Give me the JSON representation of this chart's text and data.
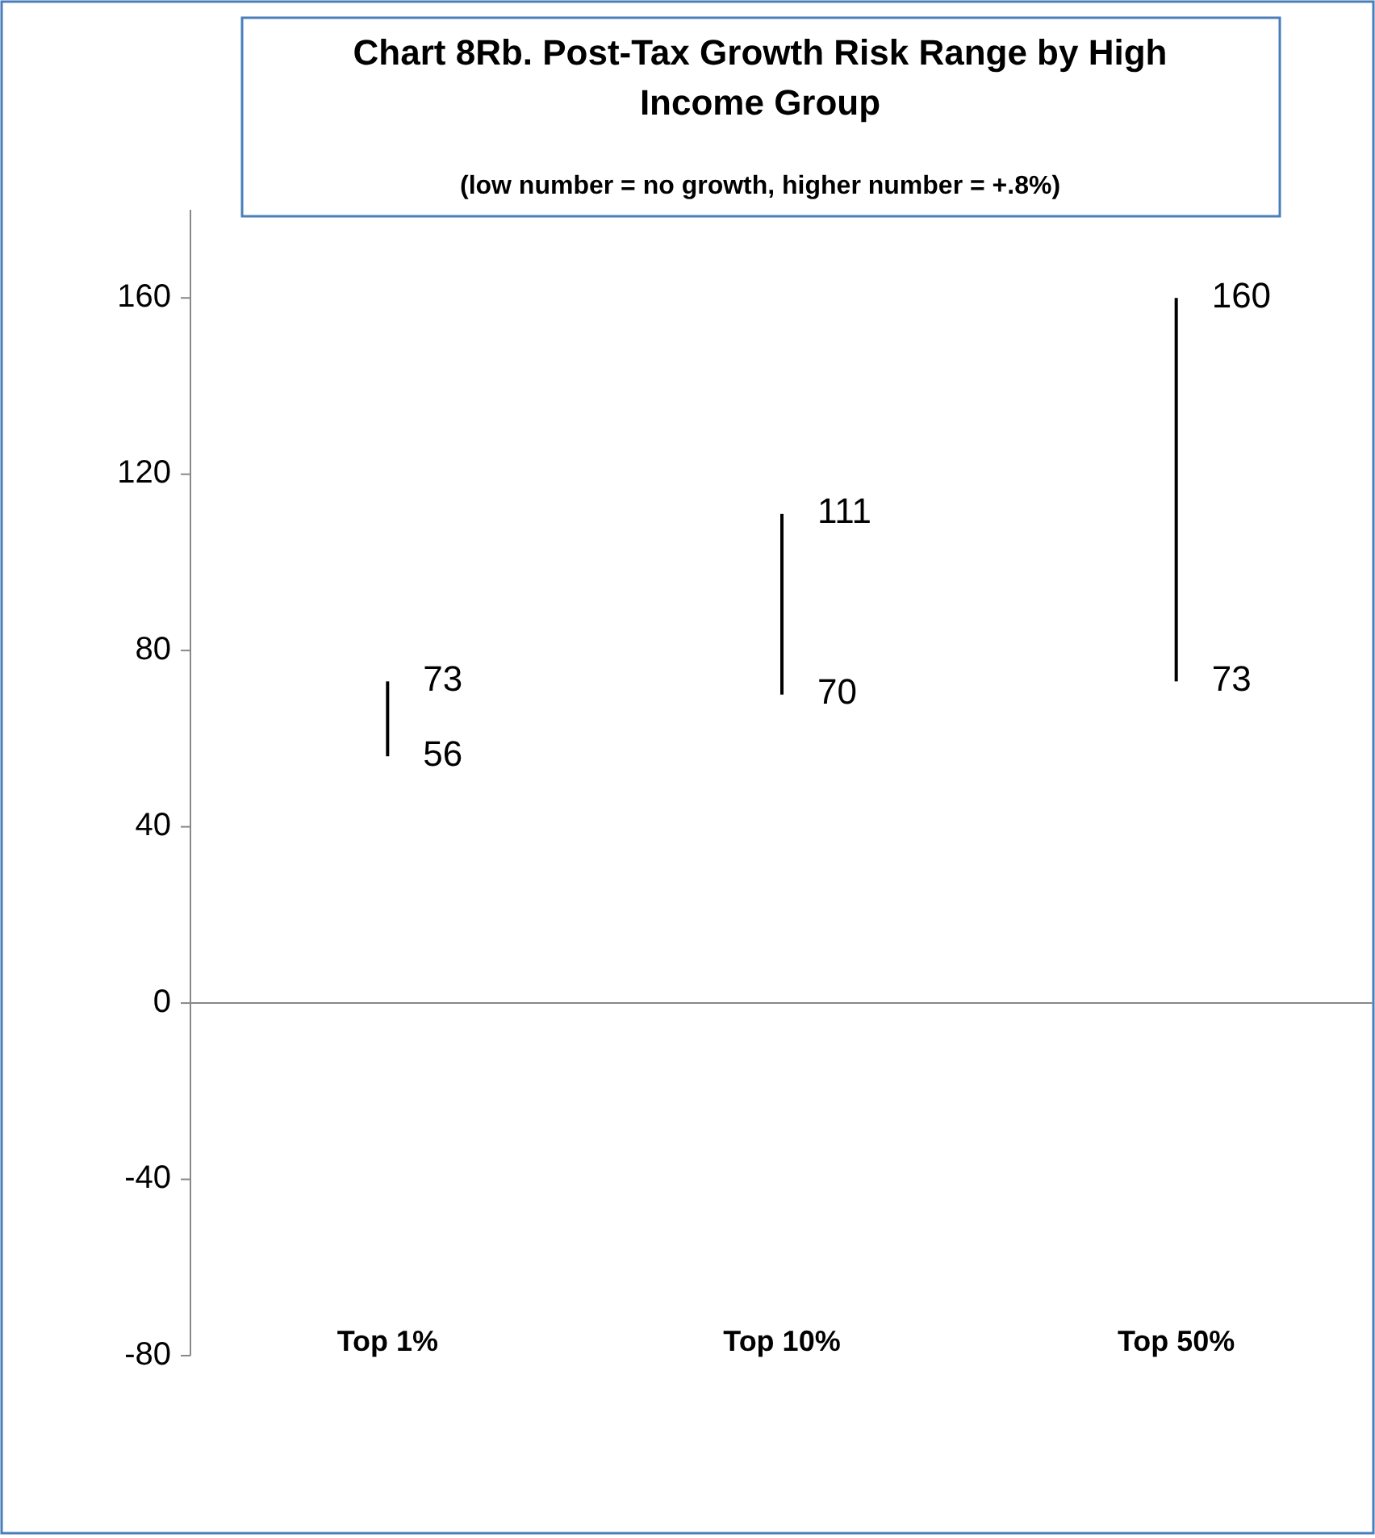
{
  "chart_data": {
    "type": "bar",
    "title": "Chart 8Rb.  Post-Tax Growth Risk Range by High Income Group",
    "subtitle": "(low number = no growth, higher number = +.8%)",
    "categories": [
      "Top 1%",
      "Top 10%",
      "Top 50%"
    ],
    "base": [
      56,
      70,
      73
    ],
    "values": [
      17,
      41,
      87
    ],
    "color": "#000000",
    "ylim": [
      -80,
      180
    ],
    "yticks": [
      -80,
      -40,
      0,
      40,
      80,
      120,
      160
    ],
    "annotations": [
      {
        "text": "73",
        "x": "Top 1%",
        "y": 73
      },
      {
        "text": "56",
        "x": "Top 1%",
        "y": 56
      },
      {
        "text": "111",
        "x": "Top 10%",
        "y": 111
      },
      {
        "text": "70",
        "x": "Top 10%",
        "y": 70
      },
      {
        "text": "160",
        "x": "Top 50%",
        "y": 160
      },
      {
        "text": "73",
        "x": "Top 50%",
        "y": 73
      }
    ]
  }
}
